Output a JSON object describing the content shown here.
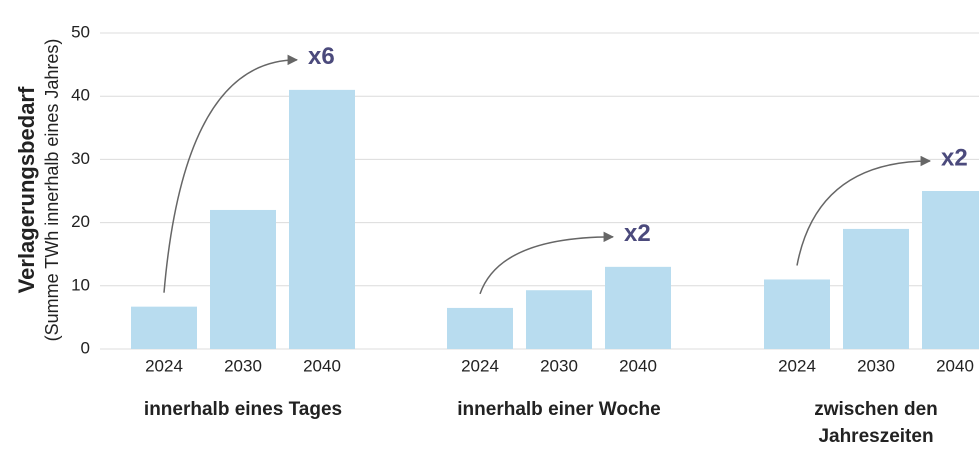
{
  "chart_data": {
    "type": "bar",
    "y_label": "Verlagerungsbedarf",
    "y_sublabel": "(Summe TWh innerhalb eines Jahres)",
    "ylim": [
      0,
      50
    ],
    "yticks": [
      0,
      10,
      20,
      30,
      40,
      50
    ],
    "grid": true,
    "color": "#b8dcef",
    "groups": [
      {
        "name": [
          "innerhalb eines Tages"
        ],
        "categories": [
          "2024",
          "2030",
          "2040"
        ],
        "values": [
          6.7,
          22,
          41
        ],
        "annotation": "x6"
      },
      {
        "name": [
          "innerhalb einer Woche"
        ],
        "categories": [
          "2024",
          "2030",
          "2040"
        ],
        "values": [
          6.5,
          9.3,
          13
        ],
        "annotation": "x2"
      },
      {
        "name": [
          "zwischen den",
          "Jahreszeiten"
        ],
        "categories": [
          "2024",
          "2030",
          "2040"
        ],
        "values": [
          11,
          19,
          25
        ],
        "annotation": "x2"
      }
    ]
  }
}
